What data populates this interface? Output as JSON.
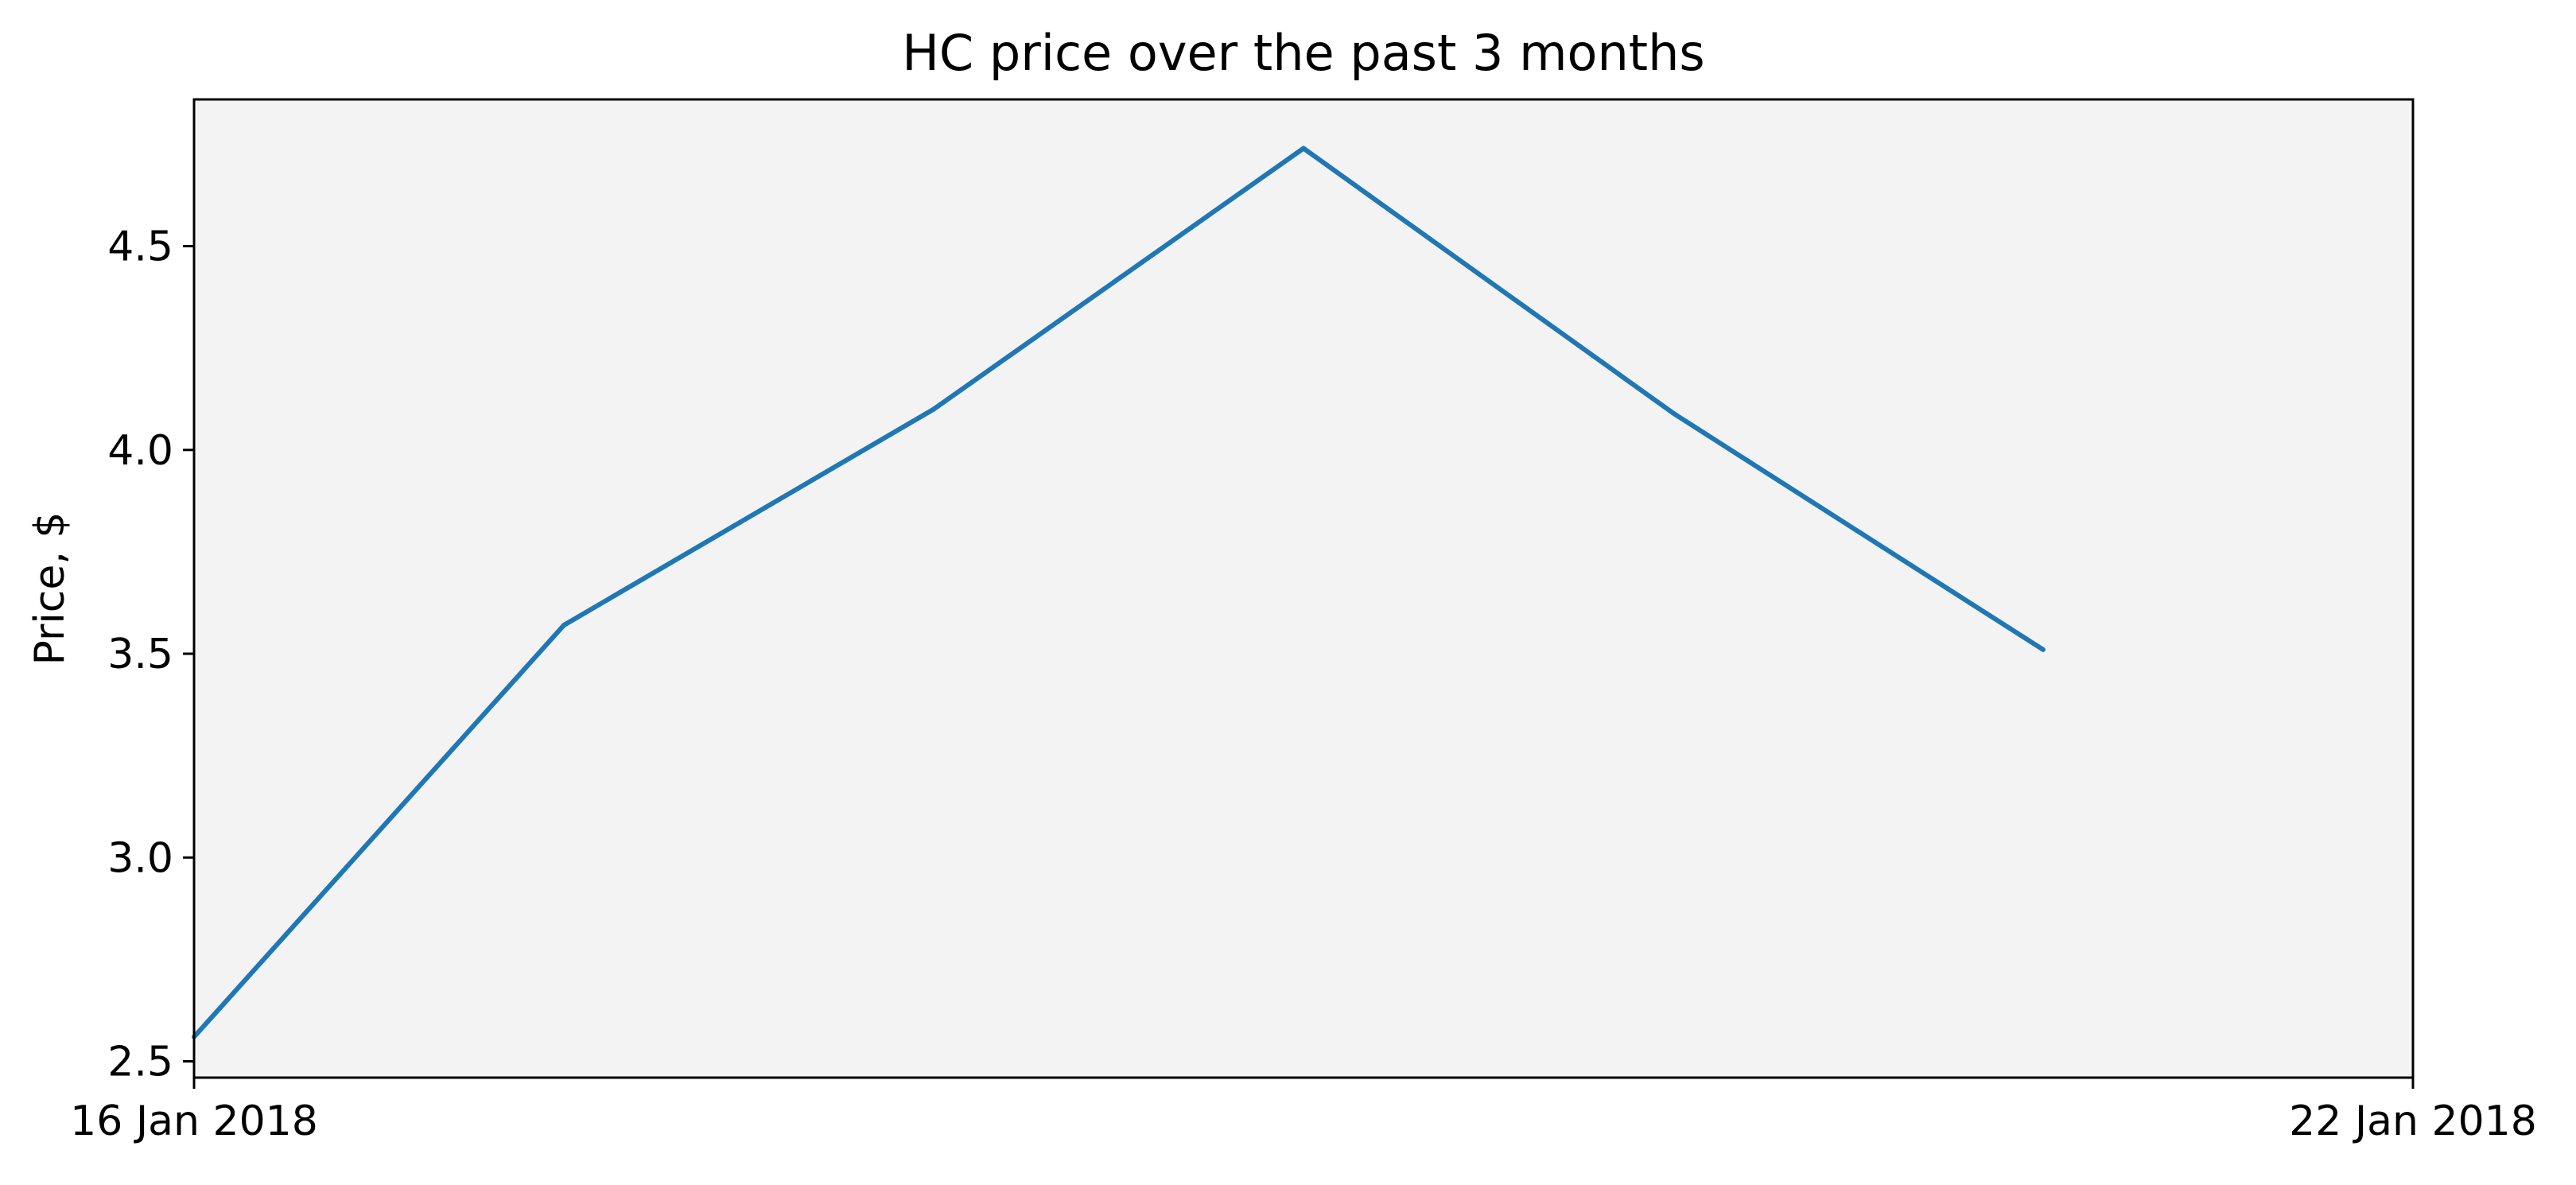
{
  "chart_data": {
    "type": "line",
    "title": "HC price over the past 3 months",
    "xlabel": "",
    "ylabel": "Price, $",
    "x": [
      "2018-01-16",
      "2018-01-17",
      "2018-01-18",
      "2018-01-19",
      "2018-01-20",
      "2018-01-21"
    ],
    "series": [
      {
        "color": "#1f77b4",
        "values": [
          2.56,
          3.57,
          4.1,
          4.74,
          4.09,
          3.51
        ]
      }
    ],
    "xlim": [
      "16 Jan 2018",
      "22 Jan 2018"
    ],
    "xticks": [
      "16 Jan 2018",
      "22 Jan 2018"
    ],
    "ylim": [
      2.46,
      4.86
    ],
    "yticks": [
      "2.5",
      "3.0",
      "3.5",
      "4.0",
      "4.5"
    ],
    "grid": false,
    "plot_background": "#f3f3f3"
  }
}
